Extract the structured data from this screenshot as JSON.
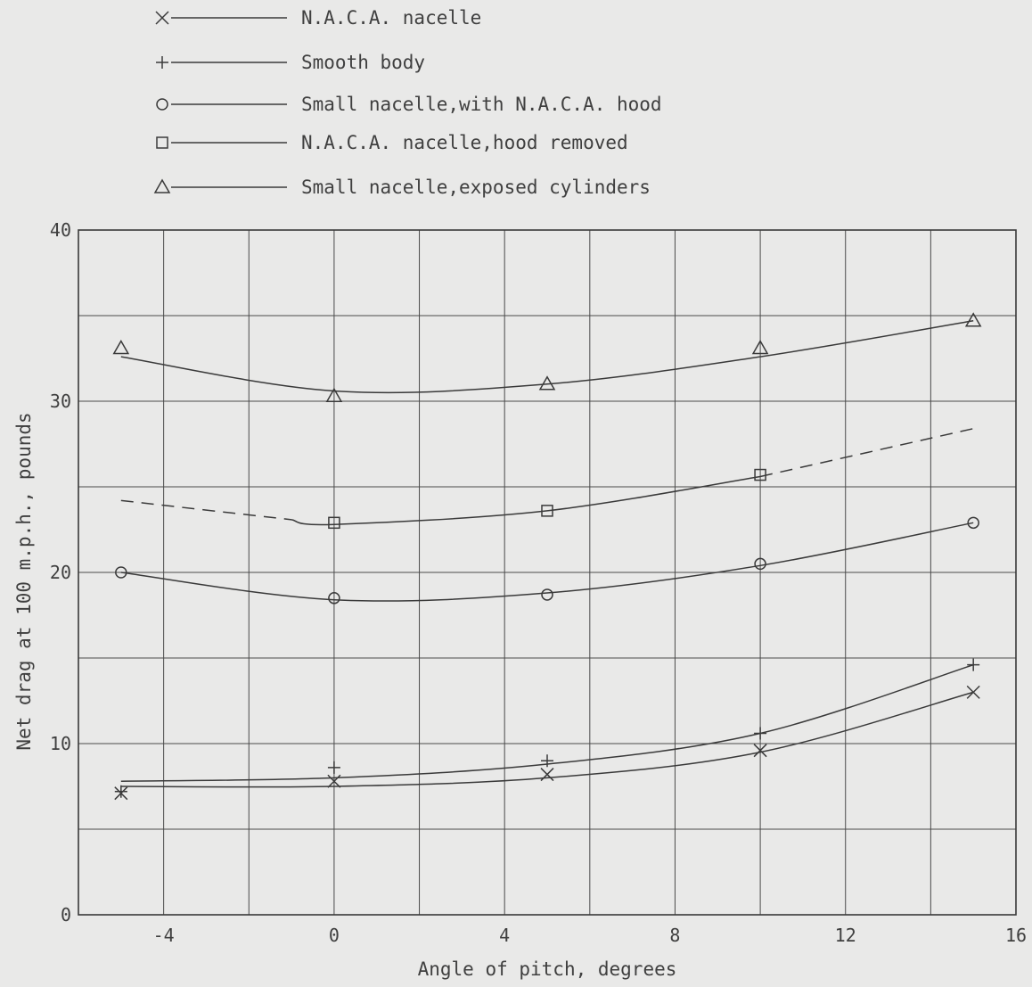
{
  "chart_data": {
    "type": "line",
    "title": "",
    "xlabel": "Angle of pitch, degrees",
    "ylabel": "Net drag at 100 m.p.h., pounds",
    "xlim": [
      -6,
      16
    ],
    "ylim": [
      0,
      40
    ],
    "xticks": [
      -4,
      0,
      4,
      8,
      12,
      16
    ],
    "yticks": [
      0,
      10,
      20,
      30,
      40
    ],
    "xtick_labels": [
      "-4",
      "0",
      "4",
      "8",
      "12",
      "16"
    ],
    "ytick_labels": [
      "0",
      "10",
      "20",
      "30",
      "40"
    ],
    "grid": true,
    "legend_position": "top-left, above plot",
    "series": [
      {
        "name": "N.A.C.A. nacelle",
        "marker": "x",
        "points": [
          [
            -5,
            7.1
          ],
          [
            0,
            7.8
          ],
          [
            5,
            8.2
          ],
          [
            10,
            9.6
          ],
          [
            15,
            13.0
          ]
        ],
        "curve": [
          [
            -5,
            7.5
          ],
          [
            0,
            7.5
          ],
          [
            5,
            8.0
          ],
          [
            10,
            9.5
          ],
          [
            15,
            13.0
          ]
        ],
        "dashed_segments": []
      },
      {
        "name": "Smooth body",
        "marker": "+",
        "points": [
          [
            -5,
            7.2
          ],
          [
            0,
            8.6
          ],
          [
            5,
            9.0
          ],
          [
            10,
            10.6
          ],
          [
            15,
            14.6
          ]
        ],
        "curve": [
          [
            -5,
            7.8
          ],
          [
            0,
            8.0
          ],
          [
            5,
            8.8
          ],
          [
            10,
            10.6
          ],
          [
            15,
            14.6
          ]
        ],
        "dashed_segments": []
      },
      {
        "name": "Small nacelle,with N.A.C.A. hood",
        "marker": "circle",
        "points": [
          [
            -5,
            20.0
          ],
          [
            0,
            18.5
          ],
          [
            5,
            18.7
          ],
          [
            10,
            20.5
          ],
          [
            15,
            22.9
          ]
        ],
        "curve": [
          [
            -5,
            20.0
          ],
          [
            0,
            18.4
          ],
          [
            5,
            18.8
          ],
          [
            10,
            20.4
          ],
          [
            15,
            22.9
          ]
        ],
        "dashed_segments": []
      },
      {
        "name": "N.A.C.A. nacelle,hood removed",
        "marker": "square",
        "points": [
          [
            0,
            22.9
          ],
          [
            5,
            23.6
          ],
          [
            10,
            25.7
          ]
        ],
        "curve": [
          [
            -5,
            24.2
          ],
          [
            0,
            22.8
          ],
          [
            5,
            23.6
          ],
          [
            10,
            25.6
          ],
          [
            15,
            28.4
          ]
        ],
        "dashed_segments": [
          [
            -5,
            -1
          ],
          [
            10,
            15
          ]
        ]
      },
      {
        "name": "Small nacelle,exposed cylinders",
        "marker": "triangle",
        "points": [
          [
            -5,
            33.1
          ],
          [
            0,
            30.3
          ],
          [
            5,
            31.0
          ],
          [
            10,
            33.1
          ],
          [
            15,
            34.7
          ]
        ],
        "curve": [
          [
            -5,
            32.6
          ],
          [
            0,
            30.6
          ],
          [
            5,
            31.0
          ],
          [
            10,
            32.6
          ],
          [
            15,
            34.7
          ]
        ],
        "dashed_segments": []
      }
    ],
    "colors": {
      "background": "#e9e9e8",
      "ink": "#3a3a3a",
      "grid": "#4a4a4a"
    }
  }
}
